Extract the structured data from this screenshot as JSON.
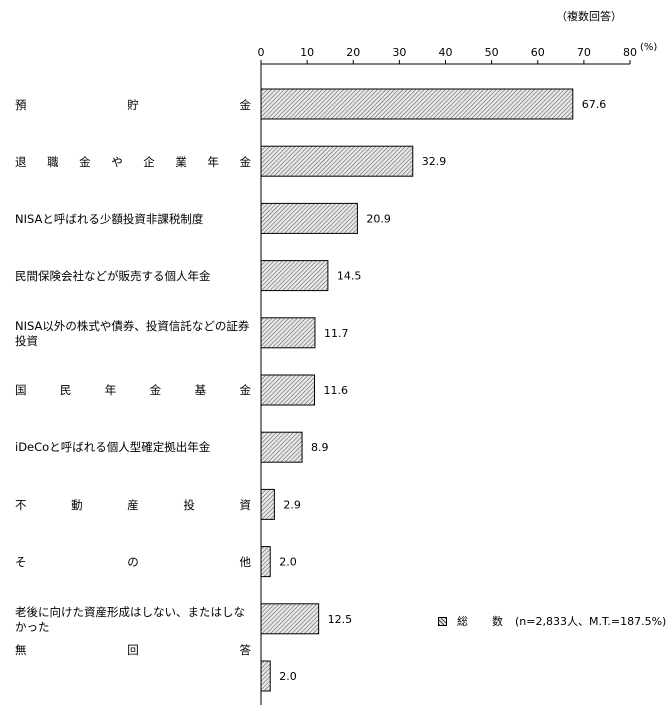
{
  "note": "（複数回答）",
  "chart_data": {
    "type": "bar",
    "orientation": "horizontal",
    "unit": "(%)",
    "xlim": [
      0,
      80
    ],
    "ticks": [
      0,
      10,
      20,
      30,
      40,
      50,
      60,
      70,
      80
    ],
    "categories": [
      "預貯金",
      "退職金や企業年金",
      "NISAと呼ばれる少額投資非課税制度",
      "民間保険会社などが販売する個人年金",
      "NISA以外の株式や債券、投資信託などの証券投資",
      "国民年金基金",
      "iDeCoと呼ばれる個人型確定拠出年金",
      "不動産投資",
      "その他",
      "老後に向けた資産形成はしない、またはしなかった",
      "無回答"
    ],
    "labels": [
      "67.6",
      "32.9",
      "20.9",
      "14.5",
      "11.7",
      "11.6",
      "8.9",
      "2.9",
      "2.0",
      "12.5",
      "2.0"
    ],
    "series": [
      {
        "name": "総数",
        "values": [
          67.6,
          32.9,
          20.9,
          14.5,
          11.7,
          11.6,
          8.9,
          2.9,
          2.0,
          12.5,
          2.0
        ]
      }
    ],
    "legend_note": "(n=2,833人、M.T.=187.5%)",
    "legend_position": "bottom-right"
  }
}
